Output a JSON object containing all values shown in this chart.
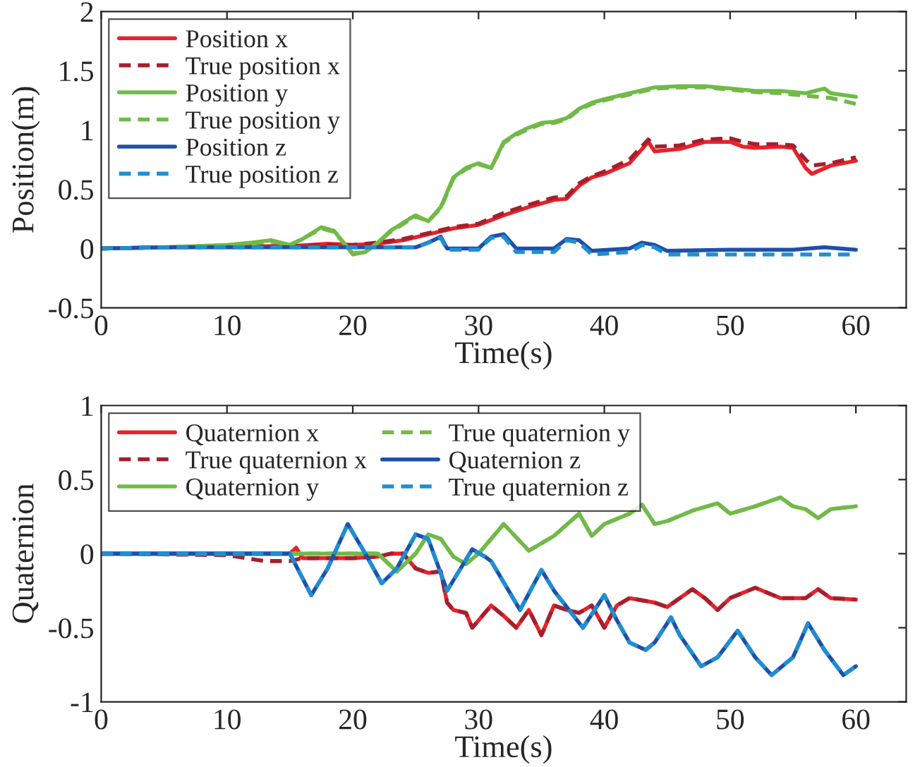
{
  "chart_data": [
    {
      "type": "line",
      "xlabel": "Time(s)",
      "ylabel": "Position(m)",
      "xlim": [
        0,
        64
      ],
      "ylim": [
        -0.5,
        2
      ],
      "xticks": [
        0,
        10,
        20,
        30,
        40,
        50,
        60
      ],
      "yticks": [
        -0.5,
        0,
        0.5,
        1,
        1.5,
        2
      ],
      "legend": "top left",
      "grid": false,
      "series": [
        {
          "name": "Position x",
          "color": "#e8222a",
          "line_style": "solid",
          "x": [
            0,
            5,
            10,
            15,
            18,
            20,
            22,
            24,
            26,
            28,
            30,
            32,
            34,
            36,
            37,
            38,
            39,
            40,
            42,
            43.5,
            44,
            46,
            48,
            50,
            51,
            52,
            54,
            55,
            56,
            56.5,
            58,
            60
          ],
          "values": [
            0.0,
            0.01,
            0.02,
            0.02,
            0.04,
            0.03,
            0.04,
            0.07,
            0.12,
            0.17,
            0.2,
            0.28,
            0.35,
            0.41,
            0.42,
            0.53,
            0.6,
            0.63,
            0.72,
            0.9,
            0.82,
            0.84,
            0.9,
            0.9,
            0.86,
            0.85,
            0.86,
            0.85,
            0.68,
            0.63,
            0.7,
            0.74
          ]
        },
        {
          "name": "True position x",
          "color": "#a3202e",
          "line_style": "dashed",
          "x": [
            0,
            5,
            10,
            15,
            18,
            20,
            22,
            24,
            26,
            28,
            30,
            32,
            34,
            36,
            37,
            38,
            39,
            40,
            42,
            43.5,
            44,
            46,
            48,
            50,
            51,
            52,
            54,
            55,
            56,
            56.5,
            58,
            60
          ],
          "values": [
            0.0,
            0.01,
            0.02,
            0.02,
            0.03,
            0.03,
            0.05,
            0.08,
            0.13,
            0.18,
            0.21,
            0.3,
            0.37,
            0.43,
            0.44,
            0.55,
            0.61,
            0.65,
            0.75,
            0.92,
            0.86,
            0.87,
            0.92,
            0.93,
            0.9,
            0.88,
            0.88,
            0.87,
            0.75,
            0.7,
            0.72,
            0.77
          ]
        },
        {
          "name": "Position y",
          "color": "#6cbd45",
          "line_style": "solid",
          "x": [
            0,
            5,
            10,
            12,
            13.5,
            15,
            16,
            17.5,
            18.5,
            19.5,
            20,
            21,
            22,
            23,
            24.5,
            25,
            26,
            27,
            28,
            29,
            30,
            31,
            32,
            33,
            34,
            35,
            36,
            37,
            38,
            39,
            40,
            42,
            44,
            46,
            48,
            50,
            52,
            54,
            56,
            57.5,
            58,
            60
          ],
          "values": [
            0.0,
            0.01,
            0.03,
            0.05,
            0.07,
            0.03,
            0.08,
            0.18,
            0.15,
            0.02,
            -0.05,
            -0.03,
            0.05,
            0.15,
            0.25,
            0.28,
            0.23,
            0.35,
            0.6,
            0.68,
            0.72,
            0.68,
            0.9,
            0.97,
            1.02,
            1.06,
            1.07,
            1.1,
            1.18,
            1.23,
            1.26,
            1.31,
            1.36,
            1.37,
            1.37,
            1.35,
            1.33,
            1.33,
            1.31,
            1.35,
            1.31,
            1.28
          ]
        },
        {
          "name": "True position y",
          "color": "#74b84a",
          "line_style": "dashed",
          "x": [
            0,
            5,
            10,
            12,
            13.5,
            15,
            16,
            17.5,
            18.5,
            19.5,
            20,
            21,
            22,
            23,
            24.5,
            25,
            26,
            27,
            28,
            29,
            30,
            31,
            32,
            33,
            34,
            35,
            36,
            37,
            38,
            39,
            40,
            42,
            44,
            46,
            48,
            50,
            52,
            54,
            56,
            58,
            60
          ],
          "values": [
            0.0,
            0.01,
            0.03,
            0.04,
            0.06,
            0.03,
            0.08,
            0.17,
            0.14,
            0.02,
            -0.04,
            -0.03,
            0.05,
            0.14,
            0.24,
            0.27,
            0.23,
            0.34,
            0.59,
            0.67,
            0.71,
            0.68,
            0.89,
            0.96,
            1.01,
            1.05,
            1.06,
            1.09,
            1.17,
            1.22,
            1.25,
            1.3,
            1.35,
            1.36,
            1.36,
            1.34,
            1.32,
            1.31,
            1.29,
            1.27,
            1.22
          ]
        },
        {
          "name": "Position z",
          "color": "#1f4fa8",
          "line_style": "solid",
          "x": [
            0,
            5,
            10,
            15,
            20,
            25,
            26,
            27,
            27.5,
            30,
            31,
            32,
            33,
            36,
            37,
            38,
            39,
            42,
            43,
            44,
            45,
            50,
            55,
            57.5,
            60
          ],
          "values": [
            0.0,
            0.01,
            0.01,
            0.01,
            0.01,
            0.01,
            0.05,
            0.1,
            0.0,
            0.0,
            0.1,
            0.12,
            0.0,
            0.0,
            0.08,
            0.07,
            -0.02,
            0.0,
            0.05,
            0.03,
            -0.02,
            -0.01,
            -0.01,
            0.01,
            -0.01
          ]
        },
        {
          "name": "True position z",
          "color": "#1e8fd2",
          "line_style": "dashed",
          "x": [
            0,
            5,
            10,
            15,
            20,
            25,
            26,
            27,
            27.5,
            30,
            31,
            32,
            33,
            36,
            37,
            38,
            39,
            42,
            43,
            44,
            45,
            50,
            55,
            60
          ],
          "values": [
            0.0,
            0.01,
            0.01,
            0.01,
            0.01,
            0.01,
            0.05,
            0.09,
            -0.01,
            -0.01,
            0.09,
            0.1,
            -0.03,
            -0.03,
            0.07,
            0.05,
            -0.05,
            -0.03,
            0.03,
            0.01,
            -0.05,
            -0.05,
            -0.05,
            -0.05
          ]
        }
      ]
    },
    {
      "type": "line",
      "xlabel": "Time(s)",
      "ylabel": "Quaternion",
      "xlim": [
        0,
        64
      ],
      "ylim": [
        -1,
        1
      ],
      "xticks": [
        0,
        10,
        20,
        30,
        40,
        50,
        60
      ],
      "yticks": [
        -1,
        -0.5,
        0,
        0.5,
        1
      ],
      "legend": "top left",
      "grid": false,
      "series": [
        {
          "name": "Quaternion x",
          "color": "#e8222a",
          "line_style": "solid",
          "x": [
            0,
            15,
            15.5,
            16,
            20,
            22,
            23,
            24,
            25,
            26,
            27,
            27.5,
            28,
            29,
            29.5,
            30,
            31,
            32,
            33,
            34,
            35,
            36,
            37,
            38,
            39,
            40,
            41,
            42,
            44,
            45,
            46,
            47,
            48,
            49,
            50,
            52,
            54,
            56,
            57,
            58,
            60
          ],
          "values": [
            0.0,
            0.0,
            0.04,
            -0.03,
            -0.03,
            -0.02,
            0.0,
            0.0,
            -0.1,
            -0.13,
            -0.12,
            -0.33,
            -0.38,
            -0.4,
            -0.5,
            -0.45,
            -0.35,
            -0.42,
            -0.5,
            -0.38,
            -0.55,
            -0.35,
            -0.38,
            -0.4,
            -0.35,
            -0.5,
            -0.35,
            -0.3,
            -0.33,
            -0.36,
            -0.3,
            -0.24,
            -0.3,
            -0.38,
            -0.3,
            -0.23,
            -0.3,
            -0.3,
            -0.24,
            -0.3,
            -0.31
          ]
        },
        {
          "name": "True quaternion x",
          "color": "#a3202e",
          "line_style": "dashed",
          "x": [
            0,
            10,
            13,
            15,
            16,
            20,
            22,
            23,
            24,
            25,
            26,
            27,
            27.5,
            28,
            29,
            29.5,
            30,
            31,
            32,
            33,
            34,
            35,
            36,
            37,
            38,
            39,
            40,
            41,
            42,
            44,
            45,
            46,
            47,
            48,
            49,
            50,
            52,
            54,
            56,
            57,
            58,
            60
          ],
          "values": [
            0.0,
            -0.01,
            -0.05,
            -0.05,
            -0.03,
            -0.03,
            -0.02,
            0.0,
            0.0,
            -0.1,
            -0.13,
            -0.12,
            -0.33,
            -0.38,
            -0.4,
            -0.5,
            -0.45,
            -0.35,
            -0.42,
            -0.5,
            -0.38,
            -0.55,
            -0.35,
            -0.38,
            -0.4,
            -0.35,
            -0.5,
            -0.35,
            -0.3,
            -0.33,
            -0.36,
            -0.3,
            -0.24,
            -0.3,
            -0.38,
            -0.3,
            -0.23,
            -0.3,
            -0.3,
            -0.24,
            -0.3,
            -0.31
          ]
        },
        {
          "name": "Quaternion y",
          "color": "#6cbd45",
          "line_style": "solid",
          "x": [
            0,
            22,
            23.5,
            25,
            26,
            27,
            28,
            29,
            30,
            32,
            34,
            35,
            36,
            38,
            39,
            40,
            42,
            43,
            44,
            45,
            47,
            49,
            50,
            52,
            53,
            54,
            55,
            56,
            57,
            58,
            60
          ],
          "values": [
            0.0,
            0.0,
            -0.12,
            0.0,
            0.13,
            0.1,
            -0.02,
            -0.07,
            0.0,
            0.2,
            0.02,
            0.07,
            0.12,
            0.27,
            0.12,
            0.2,
            0.27,
            0.33,
            0.2,
            0.22,
            0.29,
            0.34,
            0.27,
            0.32,
            0.35,
            0.38,
            0.32,
            0.3,
            0.24,
            0.3,
            0.32
          ]
        },
        {
          "name": "True quaternion y",
          "color": "#74b84a",
          "line_style": "dashed",
          "x": [
            0,
            22,
            23.5,
            25,
            26,
            27,
            28,
            29,
            30,
            32,
            34,
            35,
            36,
            38,
            39,
            40,
            42,
            43,
            44,
            45,
            47,
            49,
            50,
            52,
            53,
            54,
            55,
            56,
            57,
            58,
            60
          ],
          "values": [
            0.0,
            0.0,
            -0.12,
            0.0,
            0.13,
            0.1,
            -0.02,
            -0.07,
            0.0,
            0.2,
            0.02,
            0.07,
            0.12,
            0.27,
            0.12,
            0.2,
            0.27,
            0.33,
            0.2,
            0.22,
            0.29,
            0.34,
            0.27,
            0.32,
            0.35,
            0.38,
            0.32,
            0.3,
            0.24,
            0.3,
            0.32
          ]
        },
        {
          "name": "Quaternion z",
          "color": "#1f4fa8",
          "line_style": "solid",
          "x": [
            0,
            15,
            16.7,
            18,
            19.6,
            21,
            22.3,
            23.5,
            25,
            26,
            27.5,
            29.5,
            30.5,
            31,
            33.3,
            35,
            36,
            38.3,
            40,
            41,
            42,
            43.3,
            44,
            45.3,
            46,
            47.7,
            49,
            50.6,
            52,
            53.3,
            55,
            56.2,
            57.5,
            59,
            60
          ],
          "values": [
            0.0,
            0.0,
            -0.28,
            -0.1,
            0.2,
            0.0,
            -0.2,
            -0.1,
            0.13,
            0.1,
            -0.25,
            0.03,
            -0.02,
            -0.05,
            -0.38,
            -0.11,
            -0.25,
            -0.5,
            -0.28,
            -0.45,
            -0.6,
            -0.65,
            -0.6,
            -0.43,
            -0.55,
            -0.76,
            -0.7,
            -0.52,
            -0.7,
            -0.82,
            -0.7,
            -0.47,
            -0.65,
            -0.82,
            -0.76
          ]
        },
        {
          "name": "True quaternion z",
          "color": "#1e8fd2",
          "line_style": "dashed",
          "x": [
            0,
            15,
            16.7,
            18,
            19.6,
            21,
            22.3,
            23.5,
            25,
            26,
            27.5,
            29.5,
            30.5,
            31,
            33.3,
            35,
            36,
            38.3,
            40,
            41,
            42,
            43.3,
            44,
            45.3,
            46,
            47.7,
            49,
            50.6,
            52,
            53.3,
            55,
            56.2,
            57.5,
            59,
            60
          ],
          "values": [
            0.0,
            0.0,
            -0.28,
            -0.1,
            0.2,
            0.0,
            -0.2,
            -0.1,
            0.13,
            0.1,
            -0.25,
            0.03,
            -0.02,
            -0.05,
            -0.38,
            -0.11,
            -0.25,
            -0.5,
            -0.28,
            -0.45,
            -0.6,
            -0.65,
            -0.6,
            -0.43,
            -0.55,
            -0.76,
            -0.7,
            -0.52,
            -0.7,
            -0.82,
            -0.7,
            -0.47,
            -0.65,
            -0.82,
            -0.76
          ]
        }
      ]
    }
  ]
}
